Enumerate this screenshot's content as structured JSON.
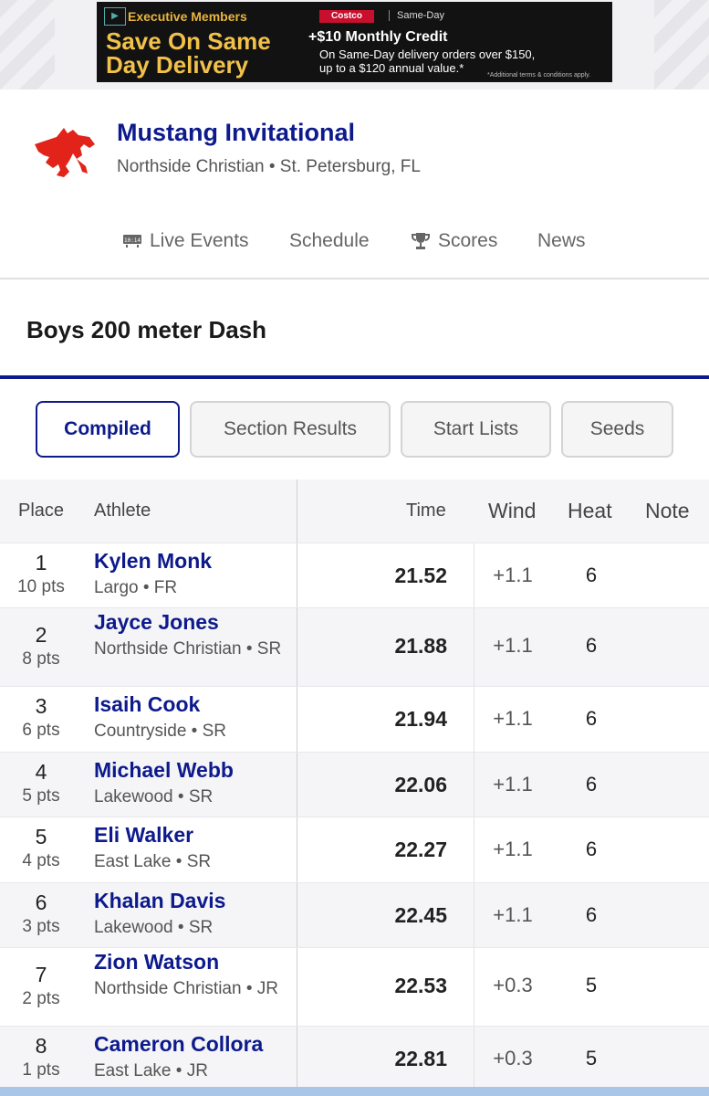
{
  "ad": {
    "top_line": "Executive Members",
    "headline1": "Save On Same",
    "headline2": "Day Delivery",
    "brand": "Costco",
    "service": "Same-Day",
    "credit": "+$10 Monthly Credit",
    "fine_line1": "On Same-Day delivery orders over $150,",
    "fine_line2": "up to a $120 annual value.*",
    "fine_line3": "*Additional terms & conditions apply."
  },
  "meet": {
    "title": "Mustang Invitational",
    "subtitle": "Northside Christian • St. Petersburg, FL",
    "logo_icon": "mustang-horse-logo"
  },
  "nav": {
    "live_events": "Live Events",
    "schedule": "Schedule",
    "scores": "Scores",
    "news": "News"
  },
  "event": {
    "title": "Boys 200 meter Dash"
  },
  "tabs": {
    "compiled": "Compiled",
    "section_results": "Section Results",
    "start_lists": "Start Lists",
    "seeds": "Seeds"
  },
  "table": {
    "headers": {
      "place": "Place",
      "athlete": "Athlete",
      "time": "Time",
      "wind": "Wind",
      "heat": "Heat",
      "note": "Note"
    },
    "rows": [
      {
        "place": "1",
        "pts": "10 pts",
        "name": "Kylen Monk",
        "team": "Largo • FR",
        "time": "21.52",
        "wind": "+1.1",
        "heat": "6"
      },
      {
        "place": "2",
        "pts": "8 pts",
        "name": "Jayce Jones",
        "team": "Northside Christian • SR",
        "time": "21.88",
        "wind": "+1.1",
        "heat": "6"
      },
      {
        "place": "3",
        "pts": "6 pts",
        "name": "Isaih Cook",
        "team": "Countryside • SR",
        "time": "21.94",
        "wind": "+1.1",
        "heat": "6"
      },
      {
        "place": "4",
        "pts": "5 pts",
        "name": "Michael Webb",
        "team": "Lakewood • SR",
        "time": "22.06",
        "wind": "+1.1",
        "heat": "6"
      },
      {
        "place": "5",
        "pts": "4 pts",
        "name": "Eli Walker",
        "team": "East Lake • SR",
        "time": "22.27",
        "wind": "+1.1",
        "heat": "6"
      },
      {
        "place": "6",
        "pts": "3 pts",
        "name": "Khalan Davis",
        "team": "Lakewood • SR",
        "time": "22.45",
        "wind": "+1.1",
        "heat": "6"
      },
      {
        "place": "7",
        "pts": "2 pts",
        "name": "Zion Watson",
        "team": "Northside Christian • JR",
        "time": "22.53",
        "wind": "+0.3",
        "heat": "5"
      },
      {
        "place": "8",
        "pts": "1 pts",
        "name": "Cameron Collora",
        "team": "East Lake • JR",
        "time": "22.81",
        "wind": "+0.3",
        "heat": "5"
      }
    ]
  },
  "colors": {
    "accent": "#0d1a8c",
    "logo": "#e2231a"
  }
}
